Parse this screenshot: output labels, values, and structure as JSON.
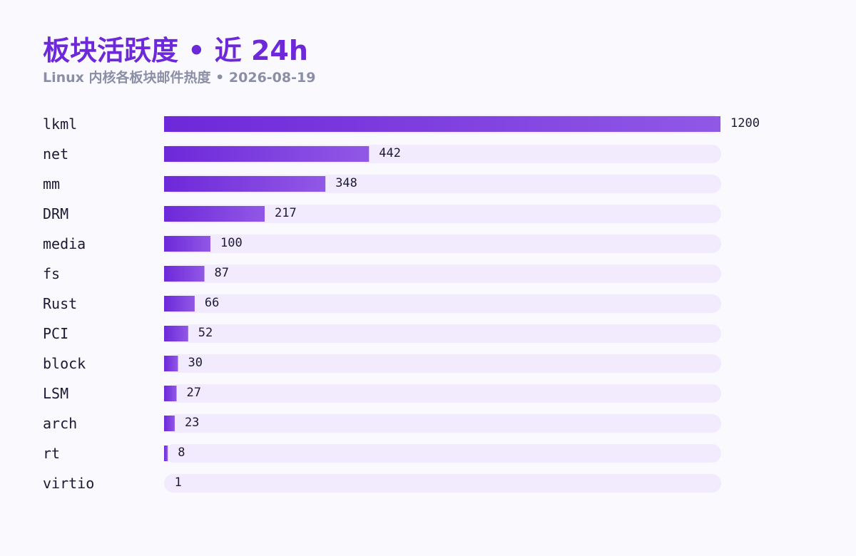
{
  "header": {
    "title": "板块活跃度 • 近 24h",
    "subtitle": "Linux 内核各板块邮件热度 • 2026-08-19"
  },
  "colors": {
    "bar_start": "#6d28d9",
    "bar_end": "#9158e6",
    "track": "#f1ebfd",
    "title": "#6d28d9",
    "subtitle": "#8a8fa6",
    "text": "#1c1a33"
  },
  "chart_data": {
    "type": "bar",
    "orientation": "horizontal",
    "categories": [
      "lkml",
      "net",
      "mm",
      "DRM",
      "media",
      "fs",
      "Rust",
      "PCI",
      "block",
      "LSM",
      "arch",
      "rt",
      "virtio"
    ],
    "values": [
      1200,
      442,
      348,
      217,
      100,
      87,
      66,
      52,
      30,
      27,
      23,
      8,
      1
    ],
    "xlim": [
      0,
      1200
    ],
    "grid": false,
    "legend": "none"
  }
}
